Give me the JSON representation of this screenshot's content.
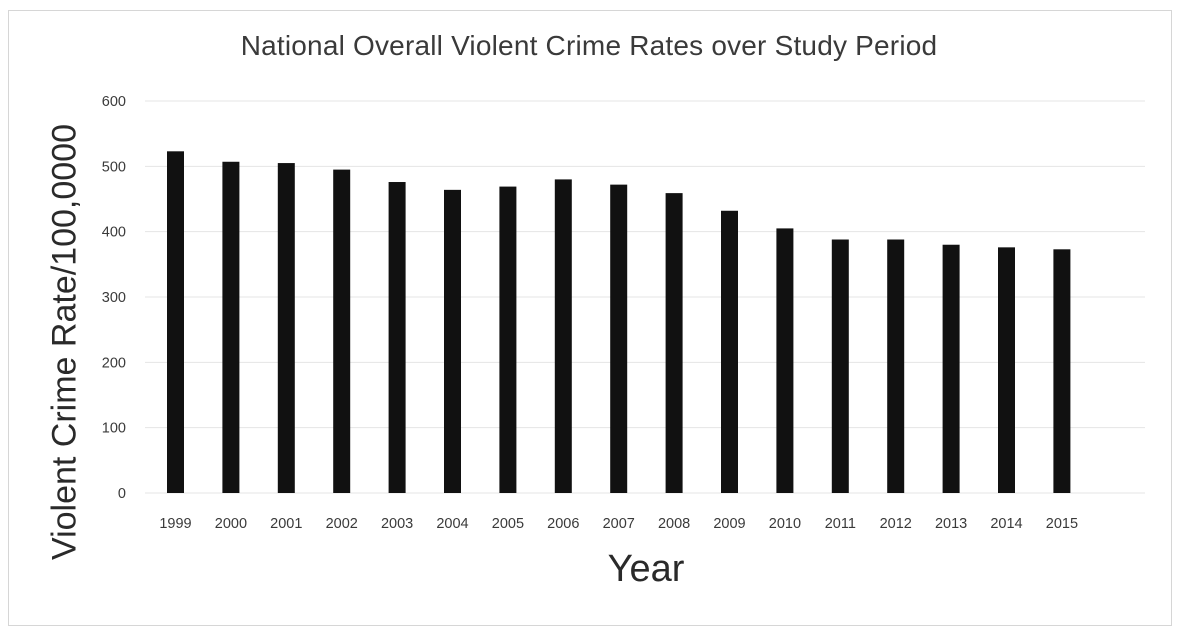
{
  "chart_data": {
    "type": "bar",
    "title": "National Overall Violent Crime Rates over Study Period",
    "xlabel": "Year",
    "ylabel": "Violent Crime Rate/100,0000",
    "categories": [
      "1999",
      "2000",
      "2001",
      "2002",
      "2003",
      "2004",
      "2005",
      "2006",
      "2007",
      "2008",
      "2009",
      "2010",
      "2011",
      "2012",
      "2013",
      "2014",
      "2015"
    ],
    "values": [
      523,
      507,
      505,
      495,
      476,
      464,
      469,
      480,
      472,
      459,
      432,
      405,
      388,
      388,
      380,
      376,
      373
    ],
    "ylim": [
      0,
      600
    ],
    "yticks": [
      0,
      100,
      200,
      300,
      400,
      500,
      600
    ],
    "grid": true,
    "legend": "none",
    "colors": {
      "bar": "#111111",
      "grid": "#e4e4e4",
      "text": "#3a3a3a"
    }
  }
}
